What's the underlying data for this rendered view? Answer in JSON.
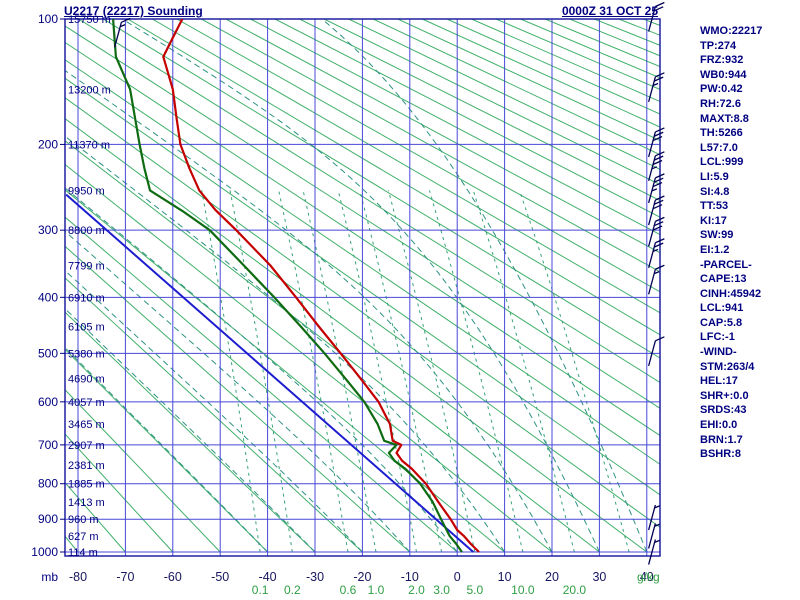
{
  "window": {
    "title": "U2217 (22217) Sounding",
    "datetime": "0000Z 31 OCT 25"
  },
  "indices": [
    "WMO:22217",
    "TP:274",
    "FRZ:932",
    "WB0:944",
    "PW:0.42",
    "RH:72.6",
    "MAXT:8.8",
    "TH:5266",
    "L57:7.0",
    "LCL:999",
    "LI:5.9",
    "SI:4.8",
    "TT:53",
    "KI:17",
    "SW:99",
    "EI:1.2",
    "-PARCEL-",
    "CAPE:13",
    "CINH:45942",
    "LCL:941",
    "CAP:5.8",
    "LFC:-1",
    "-WIND-",
    "STM:263/4",
    "HEL:17",
    "SHR+:0.0",
    "SRDS:43",
    "EHI:0.0",
    "BRN:1.7",
    "BSHR:8"
  ],
  "chart_data": {
    "type": "line",
    "subtype": "stuve-thermodynamic-sounding",
    "title": "U2217 (22217) Sounding",
    "axes": {
      "pressure_unit": "mb",
      "pressure_ticks": [
        100,
        200,
        300,
        400,
        500,
        600,
        700,
        800,
        900,
        1000
      ],
      "pressure_range": [
        100,
        1000
      ],
      "temp_unit": "C",
      "temp_ticks": [
        -80,
        -70,
        -60,
        -50,
        -40,
        -30,
        -20,
        -10,
        0,
        10,
        20,
        30,
        40
      ],
      "temp_range": [
        -83,
        43
      ]
    },
    "height_labels": [
      {
        "p": 100,
        "label": "15750 m"
      },
      {
        "p": 150,
        "label": "13200 m"
      },
      {
        "p": 200,
        "label": "11370 m"
      },
      {
        "p": 250,
        "label": "9950 m"
      },
      {
        "p": 300,
        "label": "8800 m"
      },
      {
        "p": 350,
        "label": "7799 m"
      },
      {
        "p": 400,
        "label": "6910 m"
      },
      {
        "p": 450,
        "label": "6105 m"
      },
      {
        "p": 500,
        "label": "5380 m"
      },
      {
        "p": 550,
        "label": "4690 m"
      },
      {
        "p": 600,
        "label": "4057 m"
      },
      {
        "p": 650,
        "label": "3465 m"
      },
      {
        "p": 700,
        "label": "2907 m"
      },
      {
        "p": 750,
        "label": "2381 m"
      },
      {
        "p": 800,
        "label": "1885 m"
      },
      {
        "p": 850,
        "label": "1413 m"
      },
      {
        "p": 900,
        "label": "960 m"
      },
      {
        "p": 950,
        "label": "627 m"
      },
      {
        "p": 1000,
        "label": "114 m"
      }
    ],
    "background": {
      "dry_adiabats": {
        "min": -80,
        "max": 340,
        "step": 10
      },
      "moist_adiabats": {
        "min": -40,
        "max": 40,
        "step": 10
      },
      "mixing_ratio_gkg": [
        0.1,
        0.2,
        0.6,
        1,
        2,
        3,
        5,
        10,
        20,
        40
      ],
      "mixing_ratio_labels": [
        "0.1",
        "0.2",
        "0.6",
        "1.0",
        "2.0",
        "3.0",
        "5.0",
        "10.0",
        "20.0"
      ],
      "mixing_ratio_unit": "g/kg"
    },
    "series": {
      "temperature_c": [
        [
          1000,
          4.6
        ],
        [
          975,
          2.9
        ],
        [
          950,
          1.4
        ],
        [
          932,
          0.0
        ],
        [
          900,
          -1.4
        ],
        [
          850,
          -4.0
        ],
        [
          800,
          -6.6
        ],
        [
          760,
          -9.6
        ],
        [
          740,
          -11.6
        ],
        [
          720,
          -12.8
        ],
        [
          700,
          -11.8
        ],
        [
          690,
          -13.6
        ],
        [
          650,
          -14.2
        ],
        [
          600,
          -16.6
        ],
        [
          550,
          -20.4
        ],
        [
          500,
          -24.6
        ],
        [
          450,
          -29.2
        ],
        [
          400,
          -34.0
        ],
        [
          350,
          -39.4
        ],
        [
          300,
          -46.6
        ],
        [
          274,
          -51.0
        ],
        [
          250,
          -54.4
        ],
        [
          225,
          -56.5
        ],
        [
          200,
          -58.4
        ],
        [
          175,
          -59.2
        ],
        [
          150,
          -60.0
        ],
        [
          125,
          -62.0
        ],
        [
          112,
          -60.0
        ],
        [
          100,
          -58.0
        ]
      ],
      "dewpoint_c": [
        [
          1000,
          1.0
        ],
        [
          975,
          -0.2
        ],
        [
          950,
          -1.6
        ],
        [
          900,
          -3.4
        ],
        [
          850,
          -5.2
        ],
        [
          800,
          -7.8
        ],
        [
          760,
          -11.0
        ],
        [
          740,
          -13.2
        ],
        [
          720,
          -14.4
        ],
        [
          700,
          -12.8
        ],
        [
          690,
          -15.4
        ],
        [
          650,
          -16.8
        ],
        [
          600,
          -19.6
        ],
        [
          550,
          -23.6
        ],
        [
          500,
          -28.0
        ],
        [
          450,
          -33.0
        ],
        [
          400,
          -38.6
        ],
        [
          350,
          -45.0
        ],
        [
          300,
          -52.2
        ],
        [
          275,
          -58.0
        ],
        [
          250,
          -64.8
        ],
        [
          225,
          -66.0
        ],
        [
          200,
          -67.0
        ],
        [
          150,
          -69.0
        ],
        [
          125,
          -72.0
        ],
        [
          100,
          -72.6
        ]
      ],
      "parcel_c": [
        [
          1000,
          3.4
        ],
        [
          255,
          -82.5
        ]
      ]
    },
    "wind_barbs": [
      {
        "p": 110,
        "x": 118,
        "spd": 15
      },
      {
        "p": 100,
        "spd": 20
      },
      {
        "p": 150,
        "spd": 25
      },
      {
        "p": 200,
        "spd": 30
      },
      {
        "p": 225,
        "spd": 35
      },
      {
        "p": 250,
        "spd": 35
      },
      {
        "p": 277,
        "spd": 30
      },
      {
        "p": 305,
        "spd": 30
      },
      {
        "p": 335,
        "spd": 25
      },
      {
        "p": 375,
        "spd": 15
      },
      {
        "p": 500,
        "spd": 10
      },
      {
        "p": 895,
        "spd": 5
      },
      {
        "p": 950,
        "spd": 5
      },
      {
        "p": 1000,
        "spd": 5
      }
    ],
    "colors": {
      "temperature": "#c40000",
      "dewpoint": "#0e6b11",
      "parcel": "#1d1dd0",
      "grid": "#4848d8",
      "dry_adiabat": "#41b06a",
      "moist_adiabat": "#2e9383",
      "mixing_ratio": "#38a376",
      "labels": "#000080",
      "mixing_labels": "#2f9e44"
    }
  }
}
